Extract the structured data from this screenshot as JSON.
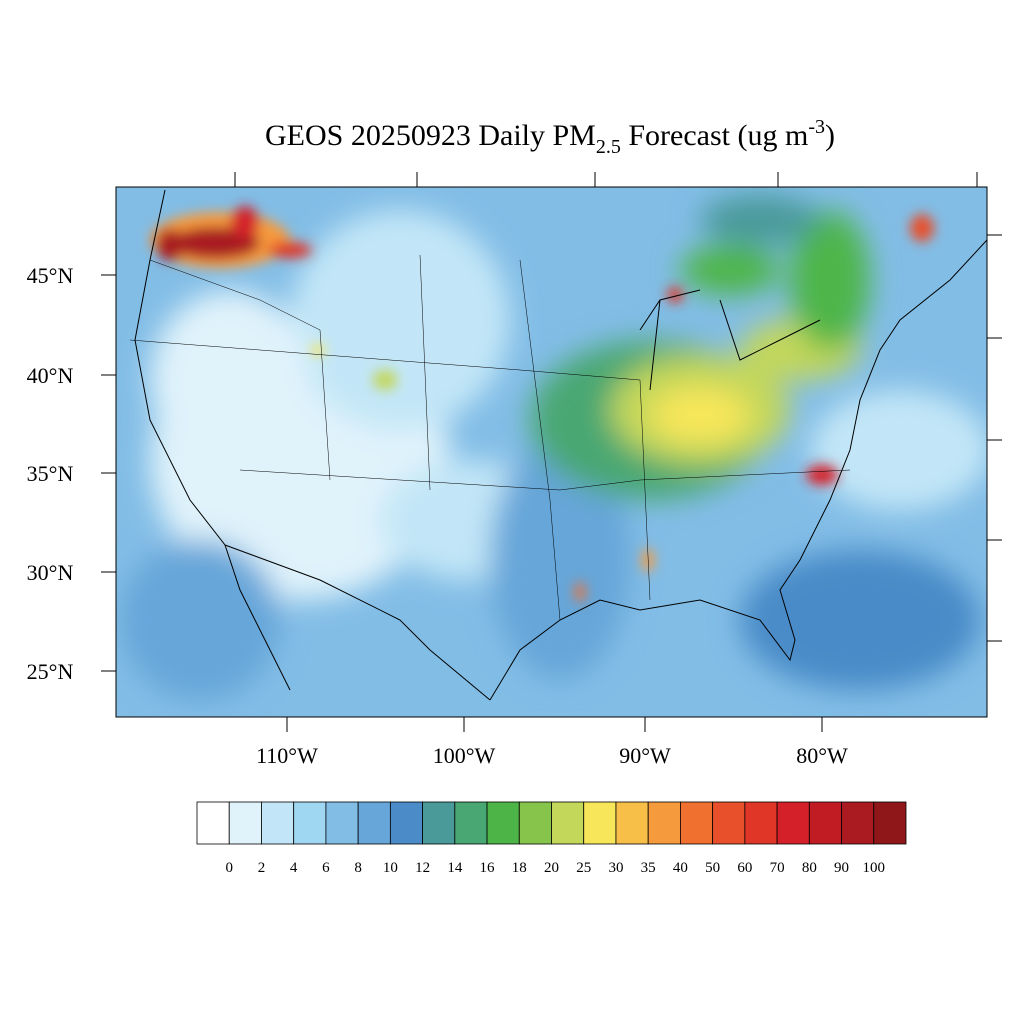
{
  "title": {
    "main": "GEOS 20250923 Daily PM",
    "subscript": "2.5",
    "middle": " Forecast (ug m",
    "superscript": "-3",
    "end": ")"
  },
  "map": {
    "lat_labels": [
      "45°N",
      "40°N",
      "35°N",
      "30°N",
      "25°N"
    ],
    "lon_labels": [
      "110°W",
      "100°W",
      "90°W",
      "80°W"
    ]
  },
  "colorbar": {
    "levels": [
      0,
      2,
      4,
      6,
      8,
      10,
      12,
      14,
      16,
      18,
      20,
      25,
      30,
      35,
      40,
      50,
      60,
      70,
      80,
      90,
      100
    ],
    "colors": [
      "#ffffff",
      "#e0f3fb",
      "#c2e6f7",
      "#9fd6f2",
      "#82bde6",
      "#66a6d9",
      "#4a8bc8",
      "#4a9a9a",
      "#48a772",
      "#4db548",
      "#87c44c",
      "#c3d75a",
      "#f7e65a",
      "#f8bf48",
      "#f59a3d",
      "#f07030",
      "#e8502b",
      "#e03628",
      "#d42029",
      "#c11c24",
      "#a91b20",
      "#8f1719"
    ]
  }
}
